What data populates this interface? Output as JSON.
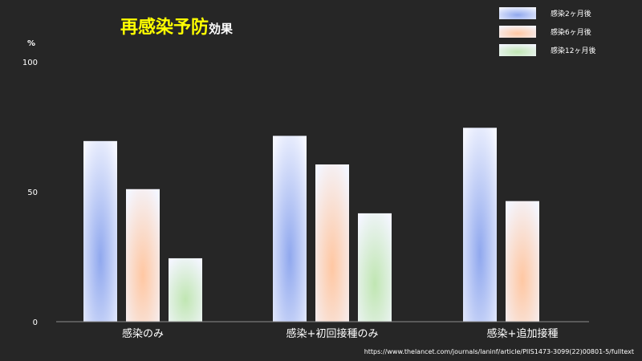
{
  "title": {
    "main": "再感染予防",
    "sub": "効果"
  },
  "unit_label": "%",
  "source_url": "https://www.thelancet.com/journals/laninf/article/PIIS1473-3099(22)00801-5/fulltext",
  "chart_data": {
    "type": "bar",
    "categories": [
      "感染のみ",
      "感染+初回接種のみ",
      "感染+追加接種"
    ],
    "series": [
      {
        "name": "感染2ヶ月後",
        "color": "#90a8ee",
        "values": [
          69.5,
          71.5,
          74.6
        ]
      },
      {
        "name": "感染6ヶ月後",
        "color": "#ffc7a2",
        "values": [
          51.0,
          60.5,
          46.4
        ]
      },
      {
        "name": "感染12ヶ月後",
        "color": "#c0e6b2",
        "values": [
          24.4,
          41.7,
          null
        ]
      }
    ],
    "ylim": [
      0,
      100
    ],
    "yticks": [
      0,
      50,
      100
    ],
    "ylabel": "%",
    "grid": false,
    "legend_position": "top-right"
  }
}
